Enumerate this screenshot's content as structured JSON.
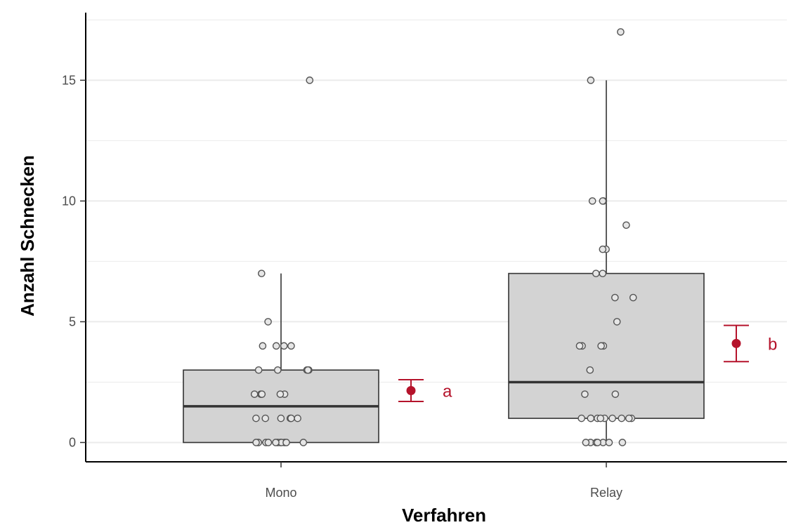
{
  "chart_data": {
    "type": "boxplot",
    "xlabel": "Verfahren",
    "ylabel": "Anzahl Schnecken",
    "categories": [
      "Mono",
      "Relay"
    ],
    "ylim": [
      -0.8,
      17.8
    ],
    "yticks": [
      0,
      5,
      10,
      15
    ],
    "grid": true,
    "colors": {
      "box_fill": "#d3d3d3",
      "box_stroke": "#333333",
      "point_fill": "#e6e6e6",
      "point_stroke": "#555555",
      "mean_ci": "#b5132b",
      "grid": "#ebebeb"
    },
    "boxes": [
      {
        "name": "Mono",
        "min": 0,
        "q1": 0,
        "median": 1.5,
        "q3": 3,
        "max": 7
      },
      {
        "name": "Relay",
        "min": 0,
        "q1": 1,
        "median": 2.5,
        "q3": 7,
        "max": 15
      }
    ],
    "points": [
      {
        "group": "Mono",
        "values": [
          0,
          0,
          0,
          0,
          0,
          0,
          0,
          0,
          0,
          0,
          0,
          1,
          1,
          1,
          1,
          1,
          1,
          2,
          2,
          2,
          2,
          2,
          3,
          3,
          3,
          3,
          3,
          4,
          4,
          4,
          4,
          5,
          7,
          15
        ]
      },
      {
        "group": "Relay",
        "values": [
          0,
          0,
          0,
          0,
          0,
          0,
          0,
          1,
          1,
          1,
          1,
          1,
          1,
          1,
          1,
          1,
          1,
          2,
          2,
          3,
          4,
          4,
          4,
          4,
          5,
          6,
          6,
          7,
          7,
          8,
          8,
          9,
          10,
          10,
          10,
          15,
          17
        ]
      }
    ],
    "mean_ci": [
      {
        "group": "Mono",
        "mean": 2.15,
        "lower": 1.7,
        "upper": 2.6,
        "label": "a"
      },
      {
        "group": "Relay",
        "mean": 4.1,
        "lower": 3.35,
        "upper": 4.85,
        "label": "b"
      }
    ]
  }
}
